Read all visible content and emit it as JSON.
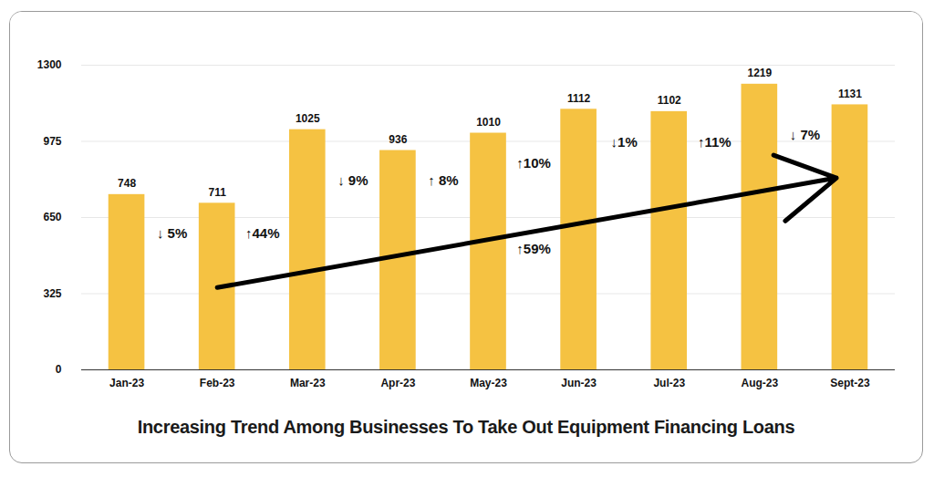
{
  "chart_data": {
    "type": "bar",
    "title": "Increasing Trend Among Businesses To Take Out Equipment Financing Loans",
    "categories": [
      "Jan-23",
      "Feb-23",
      "Mar-23",
      "Apr-23",
      "May-23",
      "Jun-23",
      "Jul-23",
      "Aug-23",
      "Sept-23"
    ],
    "values": [
      748,
      711,
      1025,
      936,
      1010,
      1112,
      1102,
      1219,
      1131
    ],
    "color": "#F5C242",
    "ylim": [
      0,
      1300
    ],
    "yticks": [
      0,
      325,
      650,
      975,
      1300
    ],
    "grid": true,
    "data_labels": true,
    "annotations": [
      {
        "text": "↓ 5%",
        "from": "Jan-23",
        "to": "Feb-23"
      },
      {
        "text": "↑44%",
        "from": "Feb-23",
        "to": "Mar-23"
      },
      {
        "text": "↓ 9%",
        "from": "Mar-23",
        "to": "Apr-23"
      },
      {
        "text": "↑ 8%",
        "from": "Apr-23",
        "to": "May-23"
      },
      {
        "text": "↑10%",
        "from": "May-23",
        "to": "Jun-23"
      },
      {
        "text": "↓1%",
        "from": "Jun-23",
        "to": "Jul-23"
      },
      {
        "text": "↑11%",
        "from": "Jul-23",
        "to": "Aug-23"
      },
      {
        "text": "↓ 7%",
        "from": "Aug-23",
        "to": "Sept-23"
      },
      {
        "text": "↑59%",
        "from": "Feb-23",
        "to": "Sept-23",
        "arrow": true
      }
    ]
  }
}
